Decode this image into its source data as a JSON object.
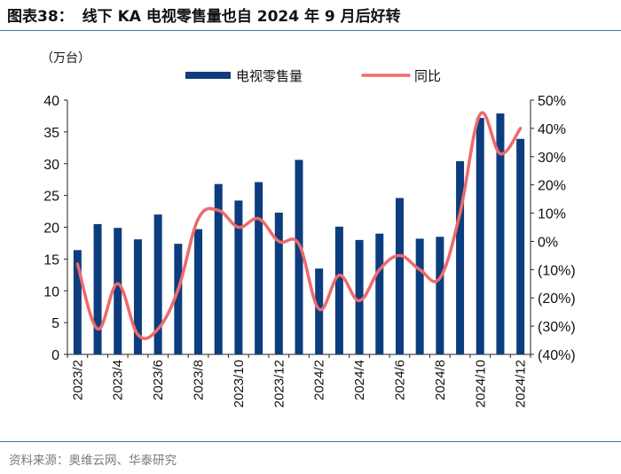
{
  "header": {
    "figure_no": "图表38：",
    "title": "线下 KA 电视零售量也自 2024 年 9 月后好转"
  },
  "footer": {
    "source": "资料来源：奥维云网、华泰研究"
  },
  "colors": {
    "bar": "#0c3d7e",
    "line": "#ef6a6a",
    "rule": "#4a6fa5"
  },
  "chart_data": {
    "type": "bar+line",
    "unit_label": "（万台）",
    "categories": [
      "2023/2",
      "2023/3",
      "2023/4",
      "2023/5",
      "2023/6",
      "2023/7",
      "2023/8",
      "2023/9",
      "2023/10",
      "2023/11",
      "2023/12",
      "2024/1",
      "2024/2",
      "2024/3",
      "2024/4",
      "2024/5",
      "2024/6",
      "2024/7",
      "2024/8",
      "2024/9",
      "2024/10",
      "2024/11",
      "2024/12"
    ],
    "x_tick_labels": [
      "2023/2",
      "2023/4",
      "2023/6",
      "2023/8",
      "2023/10",
      "2023/12",
      "2024/2",
      "2024/4",
      "2024/6",
      "2024/8",
      "2024/10",
      "2024/12"
    ],
    "series": [
      {
        "name": "电视零售量",
        "type": "bar",
        "axis": "left",
        "values": [
          16.4,
          20.5,
          19.9,
          18.1,
          22.0,
          17.4,
          19.7,
          26.8,
          24.2,
          27.1,
          22.3,
          30.6,
          13.5,
          20.1,
          18.0,
          19.0,
          24.6,
          18.2,
          18.5,
          30.4,
          37.2,
          37.9,
          33.9
        ]
      },
      {
        "name": "同比",
        "type": "line",
        "axis": "right",
        "values": [
          -8,
          -31,
          -15,
          -33,
          -31,
          -17,
          8,
          11,
          5,
          8,
          0,
          -1,
          -24,
          -12,
          -21,
          -10,
          -5,
          -10,
          -13,
          10,
          45,
          31,
          40
        ]
      }
    ],
    "left_axis": {
      "min": 0,
      "max": 40,
      "step": 5,
      "tick_labels": [
        "0",
        "5",
        "10",
        "15",
        "20",
        "25",
        "30",
        "35",
        "40"
      ]
    },
    "right_axis": {
      "min": -40,
      "max": 50,
      "step": 10,
      "tick_labels": [
        "(40%)",
        "(30%)",
        "(20%)",
        "(10%)",
        "0%",
        "10%",
        "20%",
        "30%",
        "40%",
        "50%"
      ]
    },
    "legend_position": "top-center"
  }
}
